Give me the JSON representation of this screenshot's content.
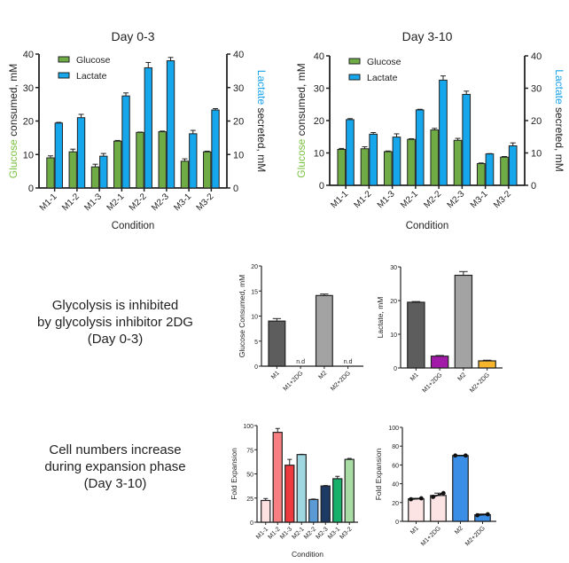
{
  "captions": {
    "glycolysis": [
      "Glycolysis is inhibited",
      "by glycolysis inhibitor 2DG",
      "(Day 0-3)"
    ],
    "expansion": [
      "Cell numbers increase",
      "during expansion phase",
      "(Day 3-10)"
    ]
  },
  "colors": {
    "glucose": "#6fac46",
    "lactate": "#15a6ec",
    "glucose_label": "#7cc243",
    "lactate_label": "#1aa3ea"
  },
  "chart_data": [
    {
      "id": "day0-3",
      "type": "bar",
      "title": "Day 0-3",
      "xlabel": "Condition",
      "ylabel_left": [
        "Glucose",
        " consumed, mM"
      ],
      "ylabel_right": [
        "Lactate",
        " secreted, mM"
      ],
      "ylim": [
        0,
        40
      ],
      "yticks": [
        0,
        10,
        20,
        30,
        40
      ],
      "legend": {
        "position": "top-left",
        "entries": [
          "Glucose",
          "Lactate"
        ]
      },
      "categories": [
        "M1-1",
        "M1-2",
        "M1-3",
        "M2-1",
        "M2-2",
        "M2-3",
        "M3-1",
        "M3-2"
      ],
      "series": [
        {
          "name": "Glucose",
          "values": [
            9.0,
            10.8,
            6.3,
            14.0,
            16.6,
            16.8,
            8.0,
            10.8
          ],
          "errors": [
            0.6,
            0.8,
            0.8,
            0.2,
            0.1,
            0.2,
            0.7,
            0.2
          ]
        },
        {
          "name": "Lactate",
          "values": [
            19.4,
            21.0,
            9.5,
            27.5,
            35.9,
            38.0,
            16.2,
            23.3
          ],
          "errors": [
            0.2,
            1.0,
            0.8,
            0.9,
            1.6,
            1.0,
            1.0,
            0.4
          ]
        }
      ]
    },
    {
      "id": "day3-10",
      "type": "bar",
      "title": "Day 3-10",
      "xlabel": "Condition",
      "ylabel_left": [
        "Glucose",
        " consumed, mM"
      ],
      "ylabel_right": [
        "Lactate",
        " secreted, mM"
      ],
      "ylim": [
        0,
        40
      ],
      "yticks": [
        0,
        10,
        20,
        30,
        40
      ],
      "legend": {
        "position": "top-left",
        "entries": [
          "Glucose",
          "Lactate"
        ]
      },
      "categories": [
        "M1-1",
        "M1-2",
        "M1-3",
        "M2-1",
        "M2-2",
        "M2-3",
        "M3-1",
        "M3-2"
      ],
      "series": [
        {
          "name": "Glucose",
          "values": [
            11.1,
            11.3,
            10.4,
            14.2,
            17.1,
            13.9,
            6.7,
            8.7
          ],
          "errors": [
            0.3,
            0.6,
            0.2,
            0.2,
            0.5,
            0.6,
            0.2,
            0.2
          ]
        },
        {
          "name": "Lactate",
          "values": [
            20.3,
            15.8,
            14.9,
            23.3,
            32.5,
            28.1,
            9.7,
            12.2
          ],
          "errors": [
            0.3,
            0.5,
            1.0,
            0.2,
            1.3,
            1.0,
            0.1,
            0.9
          ]
        }
      ]
    },
    {
      "id": "glucose-2dg",
      "type": "bar",
      "title": "",
      "xlabel": "",
      "ylabel": "Glucose Consumed, mM",
      "ylim": [
        0,
        20
      ],
      "yticks": [
        0,
        5,
        10,
        15,
        20
      ],
      "categories": [
        "M1",
        "M1+2DG",
        "M2",
        "M2+2DG"
      ],
      "values": [
        9.0,
        null,
        14.1,
        null
      ],
      "errors": [
        0.5,
        0,
        0.3,
        0
      ],
      "bar_colors": [
        "#5d5d5d",
        "#8a1f9e",
        "#a3a3a3",
        "#f2b325"
      ],
      "annotations": [
        "",
        "n.d",
        "",
        "n.d"
      ]
    },
    {
      "id": "lactate-2dg",
      "type": "bar",
      "title": "",
      "xlabel": "",
      "ylabel": "Lactate, mM",
      "ylim": [
        0,
        30
      ],
      "yticks": [
        0,
        10,
        20,
        30
      ],
      "categories": [
        "M1",
        "M1+2DG",
        "M2",
        "M2+2DG"
      ],
      "values": [
        19.5,
        3.5,
        27.5,
        2.1
      ],
      "errors": [
        0.2,
        0.2,
        1.1,
        0.2
      ],
      "bar_colors": [
        "#5d5d5d",
        "#a21aa8",
        "#a3a3a3",
        "#f6b52a"
      ],
      "annotations": [
        "",
        "",
        "",
        ""
      ]
    },
    {
      "id": "fold-expansion",
      "type": "bar",
      "title": "",
      "xlabel": "Condition",
      "ylabel": "Fold Expansion",
      "ylim": [
        0,
        100
      ],
      "yticks": [
        0,
        25,
        50,
        75,
        100
      ],
      "categories": [
        "M1-1",
        "M1-2",
        "M1-3",
        "M2-1",
        "M2-2",
        "M2-3",
        "M3-1",
        "M3-2"
      ],
      "values": [
        22.5,
        93.0,
        59.0,
        70.0,
        23.5,
        37.5,
        45.0,
        65.0
      ],
      "errors": [
        2.0,
        4.0,
        6.0,
        0.3,
        0.5,
        0.5,
        2.5,
        1.0
      ],
      "bar_colors": [
        "#fde0e0",
        "#f77f82",
        "#ec3a3f",
        "#9fd8e0",
        "#5b9bd5",
        "#1d3a64",
        "#17b06b",
        "#a9dba4"
      ]
    },
    {
      "id": "fold-expansion-2dg",
      "type": "bar",
      "title": "",
      "xlabel": "",
      "ylabel": "Fold Expansion",
      "ylim": [
        0,
        100
      ],
      "yticks": [
        0,
        20,
        40,
        60,
        80,
        100
      ],
      "categories": [
        "M1",
        "M1+2DG",
        "M2",
        "M2+2DG"
      ],
      "values": [
        24.0,
        27.5,
        70.0,
        7.0
      ],
      "errors": [
        0.5,
        2.5,
        0.3,
        0.8
      ],
      "points": [
        [
          23.5,
          24.5
        ],
        [
          26.0,
          30.0
        ],
        [
          70.0,
          70.0
        ],
        [
          6.5,
          7.5
        ]
      ],
      "bar_colors": [
        "#fde4e4",
        "#fde4e4",
        "#3a8ee6",
        "#3a8ee6"
      ]
    }
  ]
}
